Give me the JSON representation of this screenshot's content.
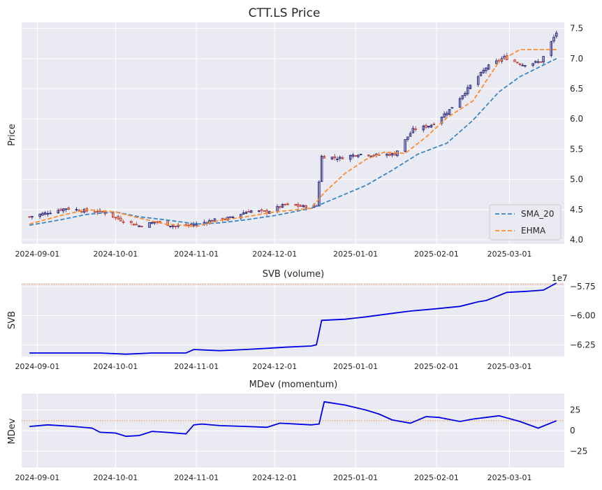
{
  "chart_data": [
    {
      "type": "candlestick",
      "title": "CTT.LS Price",
      "ylabel": "Price",
      "ylim": [
        3.93,
        7.6
      ],
      "yticks": [
        4.0,
        4.5,
        5.0,
        5.5,
        6.0,
        6.5,
        7.0,
        7.5
      ],
      "ytick_labels": [
        "4.0",
        "4.5",
        "5.0",
        "5.5",
        "6.0",
        "6.5",
        "7.0",
        "7.5"
      ],
      "xlim": [
        "2024-08-26",
        "2025-03-22"
      ],
      "xticks": [
        "2024-09-01",
        "2024-10-01",
        "2024-11-01",
        "2024-12-01",
        "2025-01-01",
        "2025-02-01",
        "2025-03-01"
      ],
      "grid": true,
      "legend_position": "bottom-right",
      "colors": {
        "up": "#1f1f7a",
        "down": "#c0392b",
        "sma": "#3a87c8",
        "ehma": "#ff8c2e",
        "background": "#eaeaf2"
      },
      "close_series": {
        "x": [
          "2024-08-29",
          "2024-09-05",
          "2024-09-12",
          "2024-09-19",
          "2024-09-26",
          "2024-10-03",
          "2024-10-10",
          "2024-10-17",
          "2024-10-24",
          "2024-10-31",
          "2024-11-07",
          "2024-11-14",
          "2024-11-21",
          "2024-11-28",
          "2024-12-05",
          "2024-12-12",
          "2024-12-17",
          "2024-12-19",
          "2024-12-26",
          "2025-01-02",
          "2025-01-09",
          "2025-01-16",
          "2025-01-23",
          "2025-01-30",
          "2025-02-06",
          "2025-02-13",
          "2025-02-20",
          "2025-02-27",
          "2025-03-06",
          "2025-03-13",
          "2025-03-19"
        ],
        "y": [
          4.38,
          4.45,
          4.52,
          4.48,
          4.46,
          4.33,
          4.23,
          4.3,
          4.22,
          4.25,
          4.32,
          4.36,
          4.48,
          4.46,
          4.58,
          4.55,
          4.56,
          5.38,
          5.35,
          5.42,
          5.4,
          5.42,
          5.82,
          5.9,
          6.15,
          6.5,
          6.85,
          7.02,
          6.9,
          6.95,
          7.43
        ]
      },
      "series": [
        {
          "name": "SMA_20",
          "x": [
            "2024-08-29",
            "2024-09-10",
            "2024-09-20",
            "2024-10-01",
            "2024-10-10",
            "2024-10-20",
            "2024-11-01",
            "2024-11-10",
            "2024-11-20",
            "2024-12-01",
            "2024-12-15",
            "2024-12-25",
            "2025-01-05",
            "2025-01-15",
            "2025-01-25",
            "2025-02-05",
            "2025-02-15",
            "2025-02-25",
            "2025-03-05",
            "2025-03-19"
          ],
          "y": [
            4.24,
            4.33,
            4.42,
            4.46,
            4.38,
            4.33,
            4.26,
            4.28,
            4.33,
            4.4,
            4.52,
            4.7,
            4.9,
            5.15,
            5.42,
            5.6,
            5.98,
            6.45,
            6.7,
            7.0
          ]
        },
        {
          "name": "EHMA",
          "x": [
            "2024-08-29",
            "2024-09-10",
            "2024-09-20",
            "2024-10-01",
            "2024-10-10",
            "2024-10-20",
            "2024-11-01",
            "2024-11-10",
            "2024-11-20",
            "2024-12-01",
            "2024-12-15",
            "2024-12-20",
            "2024-12-28",
            "2025-01-05",
            "2025-01-12",
            "2025-01-20",
            "2025-01-28",
            "2025-02-05",
            "2025-02-15",
            "2025-02-25",
            "2025-03-05",
            "2025-03-19"
          ],
          "y": [
            4.26,
            4.4,
            4.5,
            4.46,
            4.36,
            4.26,
            4.22,
            4.32,
            4.38,
            4.46,
            4.52,
            4.78,
            5.1,
            5.33,
            5.45,
            5.43,
            5.7,
            6.02,
            6.3,
            6.95,
            7.15,
            7.15
          ]
        }
      ]
    },
    {
      "type": "line",
      "title": "SVB (volume)",
      "ylabel": "SVB",
      "offset_label": "1e7",
      "ylim": [
        -6.35,
        -5.72
      ],
      "yticks": [
        -6.25,
        -6.0,
        -5.75
      ],
      "ytick_labels": [
        "−6.25",
        "−6.00",
        "−5.75"
      ],
      "reference_line": -5.73,
      "xticks": [
        "2024-09-01",
        "2024-10-01",
        "2024-11-01",
        "2024-12-01",
        "2025-01-01",
        "2025-02-01",
        "2025-03-01"
      ],
      "grid": true,
      "colors": {
        "line": "#0000e6",
        "reference": "#ff8c2e"
      },
      "series": [
        {
          "name": "SVB",
          "x": [
            "2024-08-29",
            "2024-09-10",
            "2024-09-25",
            "2024-10-05",
            "2024-10-15",
            "2024-10-28",
            "2024-10-31",
            "2024-11-10",
            "2024-11-20",
            "2024-11-28",
            "2024-12-05",
            "2024-12-15",
            "2024-12-17",
            "2024-12-19",
            "2024-12-28",
            "2025-01-05",
            "2025-01-15",
            "2025-01-22",
            "2025-02-01",
            "2025-02-10",
            "2025-02-17",
            "2025-02-20",
            "2025-02-28",
            "2025-03-08",
            "2025-03-14",
            "2025-03-19"
          ],
          "y": [
            -6.32,
            -6.32,
            -6.32,
            -6.33,
            -6.32,
            -6.32,
            -6.29,
            -6.3,
            -6.29,
            -6.28,
            -6.27,
            -6.26,
            -6.25,
            -6.04,
            -6.03,
            -6.01,
            -5.98,
            -5.96,
            -5.94,
            -5.92,
            -5.88,
            -5.87,
            -5.8,
            -5.79,
            -5.78,
            -5.72
          ]
        }
      ]
    },
    {
      "type": "line",
      "title": "MDev (momentum)",
      "ylabel": "MDev",
      "ylim": [
        -45,
        45
      ],
      "yticks": [
        -25,
        0,
        25
      ],
      "ytick_labels": [
        "−25",
        "0",
        "25"
      ],
      "reference_line": 12,
      "xticks": [
        "2024-09-01",
        "2024-10-01",
        "2024-11-01",
        "2024-12-01",
        "2025-01-01",
        "2025-02-01",
        "2025-03-01"
      ],
      "grid": true,
      "colors": {
        "line": "#0000e6",
        "reference": "#ff8c2e"
      },
      "series": [
        {
          "name": "MDev",
          "x": [
            "2024-08-29",
            "2024-09-05",
            "2024-09-15",
            "2024-09-22",
            "2024-09-25",
            "2024-10-01",
            "2024-10-05",
            "2024-10-10",
            "2024-10-15",
            "2024-10-20",
            "2024-10-28",
            "2024-10-31",
            "2024-11-03",
            "2024-11-10",
            "2024-11-20",
            "2024-11-28",
            "2024-12-03",
            "2024-12-15",
            "2024-12-18",
            "2024-12-20",
            "2024-12-28",
            "2025-01-05",
            "2025-01-10",
            "2025-01-15",
            "2025-01-22",
            "2025-01-28",
            "2025-02-02",
            "2025-02-10",
            "2025-02-15",
            "2025-02-20",
            "2025-02-25",
            "2025-03-05",
            "2025-03-12",
            "2025-03-19"
          ],
          "y": [
            5,
            7,
            5,
            3,
            -2,
            -3,
            -7,
            -6,
            -1,
            -2,
            -4,
            7,
            8,
            6,
            5,
            4,
            9,
            7,
            8,
            35,
            31,
            25,
            20,
            13,
            9,
            17,
            16,
            11,
            14,
            16,
            18,
            11,
            3,
            12
          ]
        }
      ]
    }
  ]
}
